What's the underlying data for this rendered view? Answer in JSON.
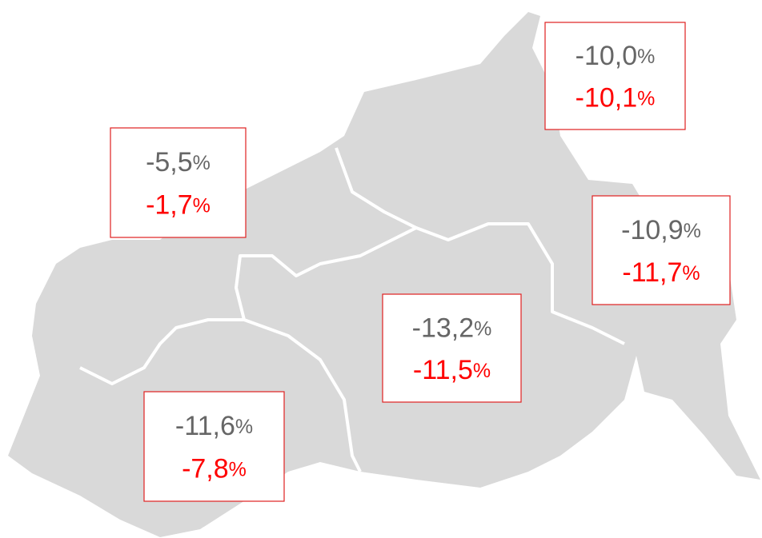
{
  "unit": "%",
  "regions": [
    {
      "top": "-10,0",
      "bottom": "-10,1"
    },
    {
      "top": "-5,5",
      "bottom": "-1,7"
    },
    {
      "top": "-10,9",
      "bottom": "-11,7"
    },
    {
      "top": "-13,2",
      "bottom": "-11,5"
    },
    {
      "top": "-11,6",
      "bottom": "-7,8"
    }
  ]
}
